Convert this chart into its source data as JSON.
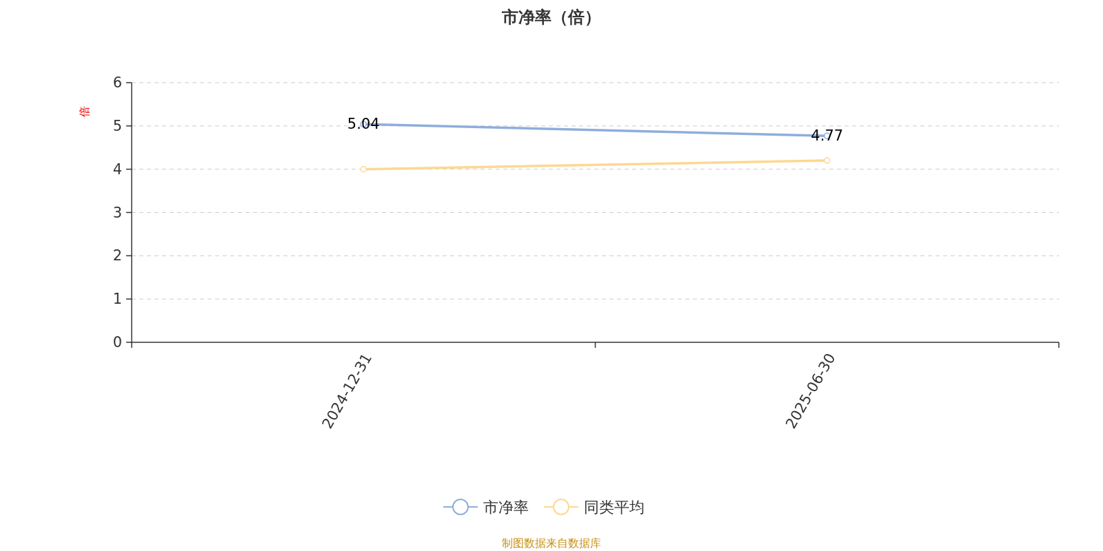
{
  "chart_data": {
    "type": "line",
    "title": "市净率（倍）",
    "ylabel": "倍",
    "categories": [
      "2024-12-31",
      "2025-06-30"
    ],
    "series": [
      {
        "name": "市净率",
        "color": "#8eaedb",
        "values": [
          5.04,
          4.77
        ],
        "value_labels": [
          "5.04",
          "4.77"
        ]
      },
      {
        "name": "同类平均",
        "color": "#fdd891",
        "values": [
          4.0,
          4.2
        ]
      }
    ],
    "ylim": [
      0,
      6
    ],
    "yticks": [
      0,
      1,
      2,
      3,
      4,
      5,
      6
    ],
    "grid": "y",
    "legend": "bottom",
    "marker": "circle",
    "line_style": "solid",
    "annotations": [
      "制图数据来自数据库"
    ]
  }
}
